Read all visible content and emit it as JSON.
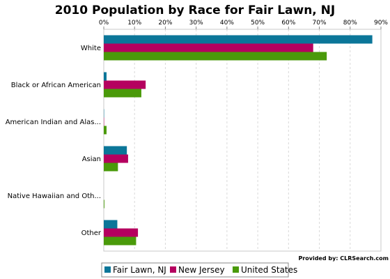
{
  "chart_data": {
    "type": "bar",
    "orientation": "horizontal",
    "title": "2010 Population by Race for Fair Lawn, NJ",
    "xlabel": "",
    "ylabel": "",
    "xlim": [
      0,
      90
    ],
    "x_ticks": [
      "0%",
      "10%",
      "20%",
      "30%",
      "40%",
      "50%",
      "60%",
      "70%",
      "80%",
      "90%"
    ],
    "grid": true,
    "legend_position": "bottom",
    "categories": [
      "White",
      "Black or African American",
      "American Indian and Alas...",
      "Asian",
      "Native Hawaiian and Oth...",
      "Other"
    ],
    "series": [
      {
        "name": "Fair Lawn, NJ",
        "color": "#0b7699",
        "values": [
          87.2,
          0.9,
          0.1,
          7.5,
          0.0,
          4.4
        ]
      },
      {
        "name": "New Jersey",
        "color": "#b5005f",
        "values": [
          68.0,
          13.6,
          0.1,
          7.9,
          0.0,
          11.1
        ]
      },
      {
        "name": "United States",
        "color": "#4a9a0a",
        "values": [
          72.4,
          12.2,
          0.9,
          4.6,
          0.2,
          10.5
        ]
      }
    ]
  },
  "credit": "Provided by: CLRSearch.com"
}
